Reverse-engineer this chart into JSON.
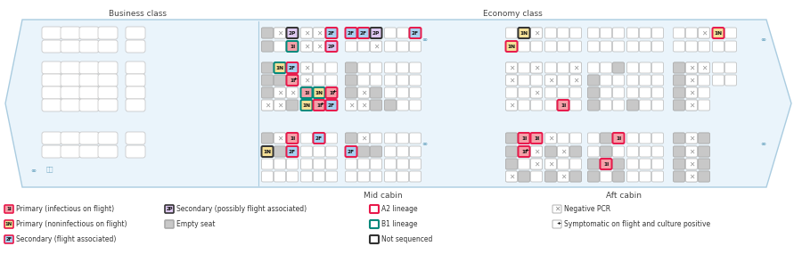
{
  "title_business": "Business class",
  "title_economy": "Economy class",
  "title_mid": "Mid cabin",
  "title_aft": "Aft cabin",
  "A2": "#e8194b",
  "B1": "#00897b",
  "NS": "#333333",
  "DEFB": "#b8b8b8",
  "F1I": "#f4a0a8",
  "F1N": "#f5e098",
  "F2F": "#a8d0f0",
  "F2P": "#ddc8f0",
  "FGRAY": "#c8c8c8",
  "plane_fill": "#eaf4fb",
  "plane_edge": "#aacce0",
  "div_color": "#aacce0"
}
